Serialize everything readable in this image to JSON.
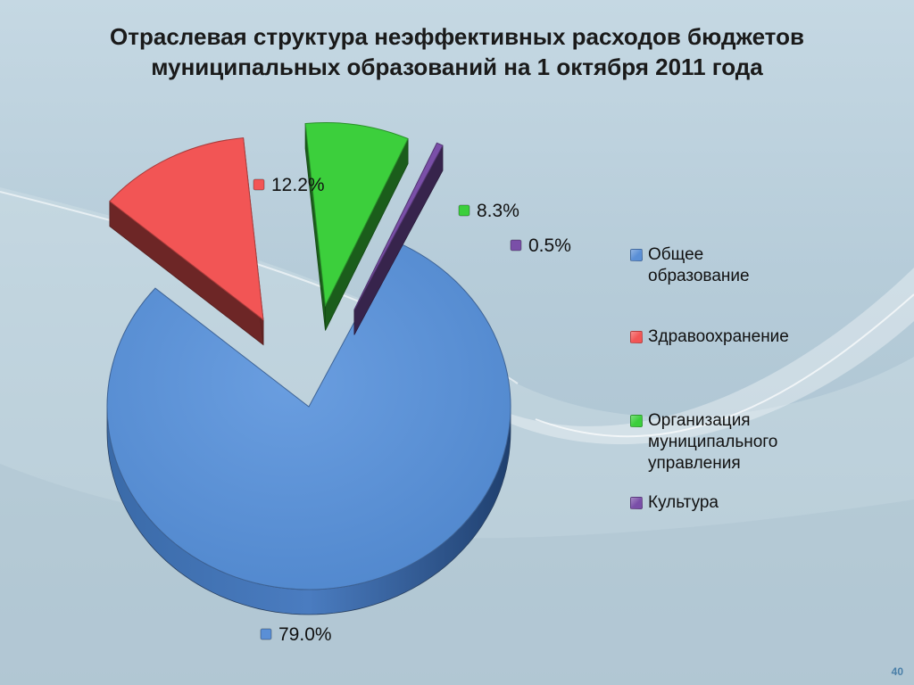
{
  "title": {
    "line1": "Отраслевая структура неэффективных расходов бюджетов",
    "line2": "муниципальных образований на 1 октября 2011 года"
  },
  "chart_data": {
    "type": "pie",
    "title": "Отраслевая структура неэффективных расходов бюджетов муниципальных образований на 1 октября 2011 года",
    "labels": [
      "Общее образование",
      "Здравоохранение",
      "Организация муниципального управления",
      "Культура"
    ],
    "values": [
      79.0,
      12.2,
      8.3,
      0.5
    ],
    "value_labels": [
      "79.0%",
      "12.2%",
      "8.3%",
      "0.5%"
    ],
    "colors": [
      "#5a8fd6",
      "#f25555",
      "#3ccf3c",
      "#7a4fa8"
    ],
    "exploded": [
      false,
      true,
      true,
      true
    ],
    "style": "3d",
    "legend_position": "right"
  },
  "legend": {
    "items": [
      {
        "label": "Общее\nобразование",
        "color": "#5a8fd6"
      },
      {
        "label": "Здравоохранение",
        "color": "#f25555"
      },
      {
        "label": "Организация\nмуниципального\nуправления",
        "color": "#3ccf3c"
      },
      {
        "label": "Культура",
        "color": "#7a4fa8"
      }
    ]
  },
  "page_number": "40"
}
